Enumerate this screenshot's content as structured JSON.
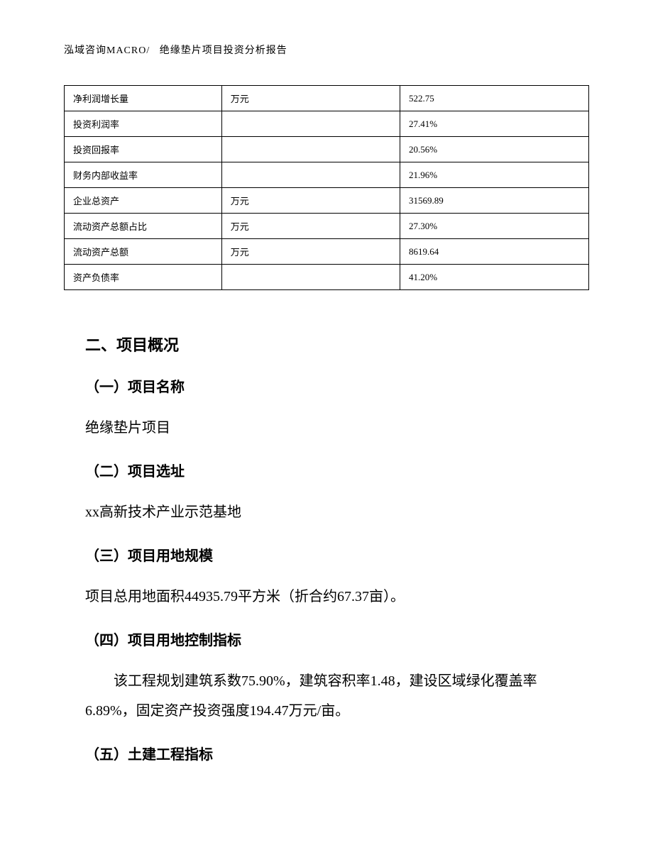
{
  "header": {
    "company": "泓域咨询MACRO/",
    "title": "绝缘垫片项目投资分析报告"
  },
  "table": {
    "rows": [
      {
        "label": "净利润增长量",
        "unit": "万元",
        "value": "522.75"
      },
      {
        "label": "投资利润率",
        "unit": "",
        "value": "27.41%"
      },
      {
        "label": "投资回报率",
        "unit": "",
        "value": "20.56%"
      },
      {
        "label": "财务内部收益率",
        "unit": "",
        "value": "21.96%"
      },
      {
        "label": "企业总资产",
        "unit": "万元",
        "value": "31569.89"
      },
      {
        "label": "流动资产总额占比",
        "unit": "万元",
        "value": "27.30%"
      },
      {
        "label": "流动资产总额",
        "unit": "万元",
        "value": "8619.64"
      },
      {
        "label": "资产负债率",
        "unit": "",
        "value": "41.20%"
      }
    ],
    "border_color": "#000000",
    "font_size": 13,
    "cell_padding": 8
  },
  "sections": {
    "main_title": "二、项目概况",
    "sub1": {
      "title": "（一）项目名称",
      "text": "绝缘垫片项目"
    },
    "sub2": {
      "title": "（二）项目选址",
      "text": "xx高新技术产业示范基地"
    },
    "sub3": {
      "title": "（三）项目用地规模",
      "text": "项目总用地面积44935.79平方米（折合约67.37亩）。"
    },
    "sub4": {
      "title": "（四）项目用地控制指标",
      "text": "该工程规划建筑系数75.90%，建筑容积率1.48，建设区域绿化覆盖率6.89%，固定资产投资强度194.47万元/亩。"
    },
    "sub5": {
      "title": "（五）土建工程指标"
    }
  },
  "styling": {
    "background_color": "#ffffff",
    "text_color": "#000000",
    "body_font_family": "SimSun",
    "heading_font_family": "SimHei",
    "body_font_size": 20,
    "heading_font_size": 22,
    "sub_heading_font_size": 20,
    "header_font_size": 14,
    "line_height": 2.1
  }
}
